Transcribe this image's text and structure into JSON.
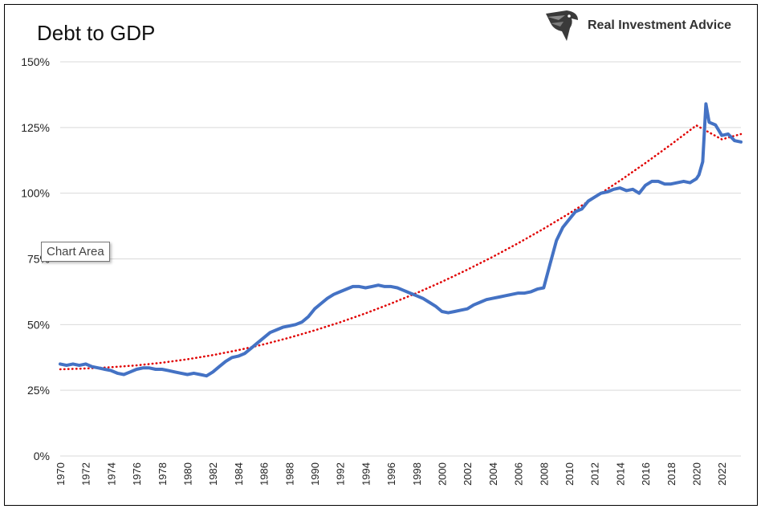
{
  "brand": {
    "name": "Real Investment Advice",
    "logo": "eagle-head-logo"
  },
  "tooltip": {
    "text": "Chart Area"
  },
  "chart_data": {
    "type": "line",
    "title": "Debt to GDP",
    "xlabel": "",
    "ylabel": "",
    "xlim": [
      1970,
      2023.5
    ],
    "ylim": [
      0,
      150
    ],
    "y_ticks": [
      "0%",
      "25%",
      "50%",
      "75%",
      "100%",
      "125%",
      "150%"
    ],
    "x_ticks": [
      "1970",
      "1972",
      "1974",
      "1976",
      "1978",
      "1980",
      "1982",
      "1984",
      "1986",
      "1988",
      "1990",
      "1992",
      "1994",
      "1996",
      "1998",
      "2000",
      "2002",
      "2004",
      "2006",
      "2008",
      "2010",
      "2012",
      "2014",
      "2016",
      "2018",
      "2020",
      "2022"
    ],
    "grid": true,
    "legend": "none",
    "colors": {
      "debt": "#4472C4",
      "trend": "#E00000",
      "grid": "#D9D9D9"
    },
    "series": [
      {
        "kind": "actual",
        "line": "solid",
        "x": [
          1970,
          1970.5,
          1971,
          1971.5,
          1972,
          1972.5,
          1973,
          1973.5,
          1974,
          1974.5,
          1975,
          1975.5,
          1976,
          1976.5,
          1977,
          1977.5,
          1978,
          1978.5,
          1979,
          1979.5,
          1980,
          1980.5,
          1981,
          1981.5,
          1982,
          1982.5,
          1983,
          1983.5,
          1984,
          1984.5,
          1985,
          1985.5,
          1986,
          1986.5,
          1987,
          1987.5,
          1988,
          1988.5,
          1989,
          1989.5,
          1990,
          1990.5,
          1991,
          1991.5,
          1992,
          1992.5,
          1993,
          1993.5,
          1994,
          1994.5,
          1995,
          1995.5,
          1996,
          1996.5,
          1997,
          1997.5,
          1998,
          1998.5,
          1999,
          1999.5,
          2000,
          2000.5,
          2001,
          2001.5,
          2002,
          2002.5,
          2003,
          2003.5,
          2004,
          2004.5,
          2005,
          2005.5,
          2006,
          2006.5,
          2007,
          2007.5,
          2008,
          2008.5,
          2009,
          2009.5,
          2010,
          2010.5,
          2011,
          2011.5,
          2012,
          2012.5,
          2013,
          2013.5,
          2014,
          2014.5,
          2015,
          2015.5,
          2016,
          2016.5,
          2017,
          2017.5,
          2018,
          2018.5,
          2019,
          2019.5,
          2020,
          2020.2,
          2020.5,
          2020.75,
          2021,
          2021.5,
          2022,
          2022.5,
          2023,
          2023.5
        ],
        "y": [
          35,
          34.5,
          35,
          34.5,
          35,
          34,
          33.5,
          33,
          32.5,
          31.5,
          31,
          32,
          33,
          33.5,
          33.5,
          33,
          33,
          32.5,
          32,
          31.5,
          31,
          31.5,
          31,
          30.5,
          32,
          34,
          36,
          37.5,
          38,
          39,
          41,
          43,
          45,
          47,
          48,
          49,
          49.5,
          50,
          51,
          53,
          56,
          58,
          60,
          61.5,
          62.5,
          63.5,
          64.5,
          64.5,
          64,
          64.5,
          65,
          64.5,
          64.5,
          64,
          63,
          62,
          61,
          60,
          58.5,
          57,
          55,
          54.5,
          55,
          55.5,
          56,
          57.5,
          58.5,
          59.5,
          60,
          60.5,
          61,
          61.5,
          62,
          62,
          62.5,
          63.5,
          64,
          73,
          82,
          87,
          90,
          93,
          94,
          97,
          98.5,
          100,
          100.5,
          101.5,
          102,
          101,
          101.5,
          100,
          103,
          104.5,
          104.5,
          103.5,
          103.5,
          104,
          104.5,
          104,
          105.5,
          107,
          112,
          134,
          127,
          126,
          122,
          122.5,
          120,
          119.5
        ]
      },
      {
        "kind": "trend",
        "line": "dotted",
        "x": [
          1970,
          1972,
          1974,
          1976,
          1978,
          1980,
          1982,
          1984,
          1986,
          1988,
          1990,
          1992,
          1994,
          1996,
          1998,
          2000,
          2002,
          2004,
          2006,
          2008,
          2010,
          2012,
          2014,
          2016,
          2018,
          2020,
          2022,
          2023.5
        ],
        "y": [
          33,
          33.3,
          33.8,
          34.5,
          35.5,
          36.8,
          38.4,
          40.3,
          42.5,
          45,
          47.8,
          50.9,
          54.3,
          58,
          62,
          66.3,
          70.9,
          75.8,
          81,
          86.5,
          92.3,
          98.4,
          104.8,
          111.5,
          118.5,
          125.8,
          120.5,
          122.5
        ]
      }
    ]
  }
}
